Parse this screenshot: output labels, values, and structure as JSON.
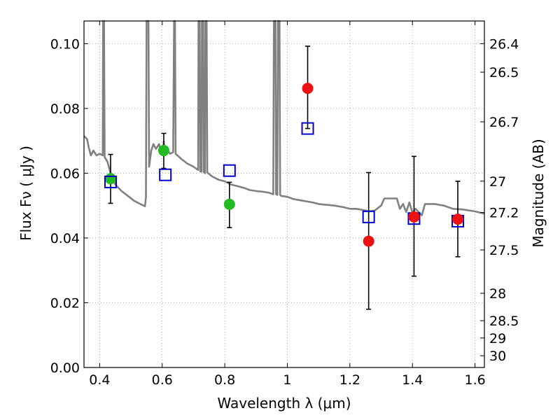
{
  "chart_data": {
    "type": "scatter",
    "xlabel": "Wavelength  λ (μm)",
    "ylabel": "Flux  Fν  ( μJy )",
    "y2label": "Magnitude (AB)",
    "xlim": [
      0.35,
      1.63
    ],
    "ylim": [
      0.0,
      0.107
    ],
    "grid": true,
    "x_ticks": [
      {
        "v": 0.4,
        "label": "0.4"
      },
      {
        "v": 0.6,
        "label": "0.6"
      },
      {
        "v": 0.8,
        "label": "0.8"
      },
      {
        "v": 1.0,
        "label": "1"
      },
      {
        "v": 1.2,
        "label": "1.2"
      },
      {
        "v": 1.4,
        "label": "1.4"
      },
      {
        "v": 1.6,
        "label": "1.6"
      }
    ],
    "y_ticks": [
      {
        "v": 0.0,
        "label": "0.00"
      },
      {
        "v": 0.02,
        "label": "0.02"
      },
      {
        "v": 0.04,
        "label": "0.04"
      },
      {
        "v": 0.06,
        "label": "0.06"
      },
      {
        "v": 0.08,
        "label": "0.08"
      },
      {
        "v": 0.1,
        "label": "0.10"
      }
    ],
    "y2_ticks": [
      {
        "mag": 26.4,
        "label": "26.4"
      },
      {
        "mag": 26.5,
        "label": "26.5"
      },
      {
        "mag": 26.7,
        "label": "26.7"
      },
      {
        "mag": 27,
        "label": "27"
      },
      {
        "mag": 27.2,
        "label": "27.2"
      },
      {
        "mag": 27.5,
        "label": "27.5"
      },
      {
        "mag": 28,
        "label": "28"
      },
      {
        "mag": 28.5,
        "label": "28.5"
      },
      {
        "mag": 29,
        "label": "29"
      },
      {
        "mag": 30,
        "label": "30"
      }
    ],
    "colors": {
      "model": "#808080",
      "green": "#22bb22",
      "red": "#ee1111",
      "box": "#0000cc",
      "errorbar": "#000000",
      "grid": "#999999"
    },
    "series": [
      {
        "kind": "model_spectrum",
        "points": [
          [
            0.35,
            0.0715
          ],
          [
            0.36,
            0.0705
          ],
          [
            0.365,
            0.068
          ],
          [
            0.372,
            0.0655
          ],
          [
            0.38,
            0.067
          ],
          [
            0.39,
            0.0655
          ],
          [
            0.4,
            0.066
          ],
          [
            0.41,
            0.0655
          ],
          [
            0.411,
            0.107
          ],
          [
            0.414,
            0.107
          ],
          [
            0.416,
            0.065
          ],
          [
            0.425,
            0.0635
          ],
          [
            0.435,
            0.06
          ],
          [
            0.45,
            0.0565
          ],
          [
            0.47,
            0.0545
          ],
          [
            0.49,
            0.053
          ],
          [
            0.51,
            0.0515
          ],
          [
            0.53,
            0.0505
          ],
          [
            0.545,
            0.0498
          ],
          [
            0.548,
            0.0525
          ],
          [
            0.55,
            0.107
          ],
          [
            0.556,
            0.107
          ],
          [
            0.558,
            0.062
          ],
          [
            0.565,
            0.067
          ],
          [
            0.572,
            0.069
          ],
          [
            0.58,
            0.0675
          ],
          [
            0.59,
            0.069
          ],
          [
            0.597,
            0.066
          ],
          [
            0.6,
            0.067
          ],
          [
            0.603,
            0.066
          ],
          [
            0.605,
            0.0698
          ],
          [
            0.607,
            0.066
          ],
          [
            0.615,
            0.0675
          ],
          [
            0.625,
            0.066
          ],
          [
            0.635,
            0.0665
          ],
          [
            0.638,
            0.107
          ],
          [
            0.641,
            0.107
          ],
          [
            0.643,
            0.066
          ],
          [
            0.66,
            0.0645
          ],
          [
            0.68,
            0.063
          ],
          [
            0.7,
            0.062
          ],
          [
            0.715,
            0.061
          ],
          [
            0.716,
            0.107
          ],
          [
            0.72,
            0.107
          ],
          [
            0.722,
            0.0605
          ],
          [
            0.726,
            0.0605
          ],
          [
            0.727,
            0.107
          ],
          [
            0.731,
            0.107
          ],
          [
            0.733,
            0.0603
          ],
          [
            0.737,
            0.06
          ],
          [
            0.738,
            0.107
          ],
          [
            0.742,
            0.107
          ],
          [
            0.744,
            0.0602
          ],
          [
            0.76,
            0.059
          ],
          [
            0.78,
            0.058
          ],
          [
            0.8,
            0.0575
          ],
          [
            0.82,
            0.0565
          ],
          [
            0.84,
            0.056
          ],
          [
            0.86,
            0.0555
          ],
          [
            0.88,
            0.0548
          ],
          [
            0.9,
            0.0545
          ],
          [
            0.92,
            0.0543
          ],
          [
            0.94,
            0.054
          ],
          [
            0.955,
            0.0535
          ],
          [
            0.957,
            0.107
          ],
          [
            0.962,
            0.107
          ],
          [
            0.964,
            0.0535
          ],
          [
            0.968,
            0.0533
          ],
          [
            0.97,
            0.107
          ],
          [
            0.975,
            0.107
          ],
          [
            0.977,
            0.0533
          ],
          [
            0.98,
            0.053
          ],
          [
            1.0,
            0.0527
          ],
          [
            1.02,
            0.052
          ],
          [
            1.05,
            0.0515
          ],
          [
            1.08,
            0.051
          ],
          [
            1.1,
            0.0505
          ],
          [
            1.15,
            0.05
          ],
          [
            1.18,
            0.0495
          ],
          [
            1.2,
            0.049
          ],
          [
            1.22,
            0.049
          ],
          [
            1.25,
            0.0485
          ],
          [
            1.26,
            0.0482
          ],
          [
            1.28,
            0.0485
          ],
          [
            1.3,
            0.05
          ],
          [
            1.31,
            0.0522
          ],
          [
            1.35,
            0.0522
          ],
          [
            1.36,
            0.049
          ],
          [
            1.37,
            0.0505
          ],
          [
            1.38,
            0.048
          ],
          [
            1.39,
            0.051
          ],
          [
            1.4,
            0.0478
          ],
          [
            1.41,
            0.049
          ],
          [
            1.43,
            0.047
          ],
          [
            1.44,
            0.0505
          ],
          [
            1.47,
            0.0505
          ],
          [
            1.5,
            0.05
          ],
          [
            1.53,
            0.049
          ],
          [
            1.56,
            0.0488
          ],
          [
            1.6,
            0.0482
          ],
          [
            1.63,
            0.0475
          ]
        ]
      },
      {
        "kind": "observed_green",
        "points": [
          {
            "x": 0.435,
            "y": 0.0583,
            "lo": 0.0507,
            "hi": 0.0658
          },
          {
            "x": 0.605,
            "y": 0.067,
            "lo": 0.0615,
            "hi": 0.0723
          },
          {
            "x": 0.815,
            "y": 0.0504,
            "lo": 0.0432,
            "hi": 0.0572
          }
        ]
      },
      {
        "kind": "observed_red",
        "points": [
          {
            "x": 1.065,
            "y": 0.0862,
            "lo": 0.0738,
            "hi": 0.0992
          },
          {
            "x": 1.26,
            "y": 0.039,
            "lo": 0.018,
            "hi": 0.0602
          },
          {
            "x": 1.405,
            "y": 0.0465,
            "lo": 0.0282,
            "hi": 0.0652
          },
          {
            "x": 1.545,
            "y": 0.0458,
            "lo": 0.0342,
            "hi": 0.0575
          }
        ]
      },
      {
        "kind": "model_bandpass",
        "points": [
          {
            "x": 0.435,
            "y": 0.0573
          },
          {
            "x": 0.61,
            "y": 0.0595
          },
          {
            "x": 0.815,
            "y": 0.0608
          },
          {
            "x": 1.065,
            "y": 0.0738
          },
          {
            "x": 1.26,
            "y": 0.0465
          },
          {
            "x": 1.405,
            "y": 0.046
          },
          {
            "x": 1.545,
            "y": 0.0452
          }
        ]
      }
    ]
  }
}
